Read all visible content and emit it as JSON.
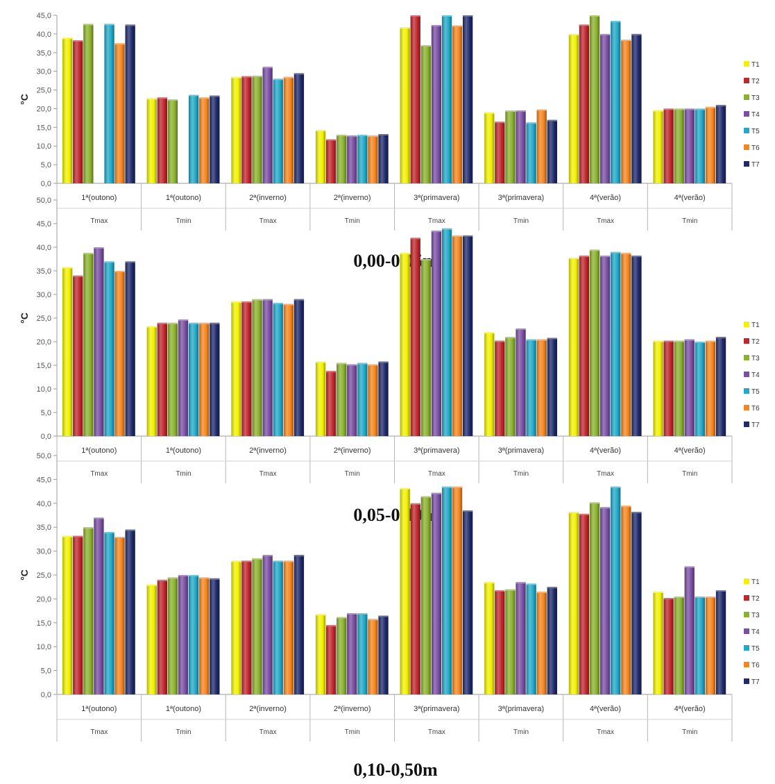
{
  "chart_data": [
    {
      "type": "bar",
      "title": "0,00-0,05m",
      "ylabel": "°C",
      "ylim": [
        0,
        45
      ],
      "yticks": [
        "0,0",
        "5,0",
        "10,0",
        "15,0",
        "20,0",
        "25,0",
        "30,0",
        "35,0",
        "40,0",
        "45,0"
      ],
      "grid": false,
      "legend_position": "right",
      "categories": [
        {
          "period": "1ª(outono)",
          "stat": "Tmax"
        },
        {
          "period": "1ª(outono)",
          "stat": "Tmin"
        },
        {
          "period": "2ª(inverno)",
          "stat": "Tmax"
        },
        {
          "period": "2ª(inverno)",
          "stat": "Tmin"
        },
        {
          "period": "3ª(primavera)",
          "stat": "Tmax"
        },
        {
          "period": "3ª(primavera)",
          "stat": "Tmin"
        },
        {
          "period": "4ª(verão)",
          "stat": "Tmax"
        },
        {
          "period": "4ª(verão)",
          "stat": "Tmin"
        }
      ],
      "series": [
        {
          "name": "T1",
          "values": [
            39.0,
            22.8,
            28.5,
            14.3,
            41.8,
            19.0,
            40.0,
            19.6
          ]
        },
        {
          "name": "T2",
          "values": [
            38.3,
            23.0,
            28.7,
            11.8,
            45.0,
            16.5,
            42.5,
            20.0
          ]
        },
        {
          "name": "T3",
          "values": [
            42.7,
            22.5,
            28.8,
            13.0,
            37.0,
            19.5,
            45.0,
            20.0
          ]
        },
        {
          "name": "T4",
          "values": [
            null,
            null,
            31.2,
            12.8,
            42.4,
            19.5,
            40.0,
            20.0
          ]
        },
        {
          "name": "T5",
          "values": [
            42.7,
            23.7,
            28.0,
            13.0,
            45.0,
            16.3,
            43.5,
            20.0
          ]
        },
        {
          "name": "T6",
          "values": [
            37.5,
            23.0,
            28.5,
            12.8,
            42.3,
            19.8,
            38.5,
            20.5
          ]
        },
        {
          "name": "T7",
          "values": [
            42.5,
            23.5,
            29.5,
            13.2,
            45.0,
            17.0,
            40.0,
            21.0
          ]
        }
      ]
    },
    {
      "type": "bar",
      "title": "0,05-0,10m",
      "ylabel": "°C",
      "ylim": [
        0,
        50
      ],
      "yticks": [
        "0,0",
        "5,0",
        "10,0",
        "15,0",
        "20,0",
        "25,0",
        "30,0",
        "35,0",
        "40,0",
        "45,0",
        "50,0"
      ],
      "grid": false,
      "legend_position": "right",
      "categories": [
        {
          "period": "1ª(outono)",
          "stat": "Tmax"
        },
        {
          "period": "1ª(outono)",
          "stat": "Tmin"
        },
        {
          "period": "2ª(inverno)",
          "stat": "Tmax"
        },
        {
          "period": "2ª(inverno)",
          "stat": "Tmin"
        },
        {
          "period": "3ª(primavera)",
          "stat": "Tmax"
        },
        {
          "period": "3ª(primavera)",
          "stat": "Tmin"
        },
        {
          "period": "4ª(verão)",
          "stat": "Tmax"
        },
        {
          "period": "4ª(verão)",
          "stat": "Tmin"
        }
      ],
      "series": [
        {
          "name": "T1",
          "values": [
            35.8,
            23.3,
            28.5,
            15.8,
            38.8,
            22.0,
            37.8,
            20.2
          ]
        },
        {
          "name": "T2",
          "values": [
            34.0,
            24.0,
            28.5,
            13.8,
            42.0,
            20.2,
            38.2,
            20.2
          ]
        },
        {
          "name": "T3",
          "values": [
            38.8,
            24.0,
            29.0,
            15.5,
            37.5,
            21.0,
            39.5,
            20.2
          ]
        },
        {
          "name": "T4",
          "values": [
            40.0,
            24.7,
            29.0,
            15.2,
            43.5,
            22.8,
            38.2,
            20.5
          ]
        },
        {
          "name": "T5",
          "values": [
            37.0,
            24.0,
            28.2,
            15.5,
            44.0,
            20.5,
            39.0,
            20.0
          ]
        },
        {
          "name": "T6",
          "values": [
            35.0,
            24.0,
            28.0,
            15.2,
            42.5,
            20.5,
            38.8,
            20.2
          ]
        },
        {
          "name": "T7",
          "values": [
            37.0,
            24.0,
            29.0,
            15.8,
            42.5,
            20.8,
            38.2,
            21.0
          ]
        }
      ]
    },
    {
      "type": "bar",
      "title": "0,10-0,50m",
      "ylabel": "°C",
      "ylim": [
        0,
        50
      ],
      "yticks": [
        "0,0",
        "5,0",
        "10,0",
        "15,0",
        "20,0",
        "25,0",
        "30,0",
        "35,0",
        "40,0",
        "45,0",
        "50,0"
      ],
      "grid": false,
      "legend_position": "right",
      "categories": [
        {
          "period": "1ª(outono)",
          "stat": "Tmax"
        },
        {
          "period": "1ª(outono)",
          "stat": "Tmin"
        },
        {
          "period": "2ª(inverno)",
          "stat": "Tmax"
        },
        {
          "period": "2ª(inverno)",
          "stat": "Tmin"
        },
        {
          "period": "3ª(primavera)",
          "stat": "Tmax"
        },
        {
          "period": "3ª(primavera)",
          "stat": "Tmin"
        },
        {
          "period": "4ª(verão)",
          "stat": "Tmax"
        },
        {
          "period": "4ª(verão)",
          "stat": "Tmin"
        }
      ],
      "series": [
        {
          "name": "T1",
          "values": [
            33.2,
            23.0,
            28.0,
            16.8,
            43.2,
            23.5,
            38.2,
            21.5
          ]
        },
        {
          "name": "T2",
          "values": [
            33.2,
            24.0,
            28.0,
            14.5,
            40.0,
            21.8,
            37.8,
            20.2
          ]
        },
        {
          "name": "T3",
          "values": [
            35.0,
            24.5,
            28.5,
            16.2,
            41.5,
            22.0,
            40.2,
            20.5
          ]
        },
        {
          "name": "T4",
          "values": [
            37.0,
            25.0,
            29.2,
            17.0,
            42.2,
            23.5,
            39.2,
            26.8
          ]
        },
        {
          "name": "T5",
          "values": [
            34.0,
            25.0,
            28.0,
            17.0,
            43.5,
            23.2,
            43.5,
            20.5
          ]
        },
        {
          "name": "T6",
          "values": [
            33.0,
            24.5,
            28.0,
            15.8,
            43.5,
            21.5,
            39.5,
            20.5
          ]
        },
        {
          "name": "T7",
          "values": [
            34.5,
            24.3,
            29.2,
            16.5,
            38.5,
            22.5,
            38.2,
            21.8
          ]
        }
      ]
    }
  ],
  "colors": {
    "T1": "#f2f200",
    "T2": "#c0272d",
    "T3": "#8bb22d",
    "T4": "#7a4fa3",
    "T5": "#21a9c9",
    "T6": "#f5861f",
    "T7": "#1f2a6b"
  }
}
